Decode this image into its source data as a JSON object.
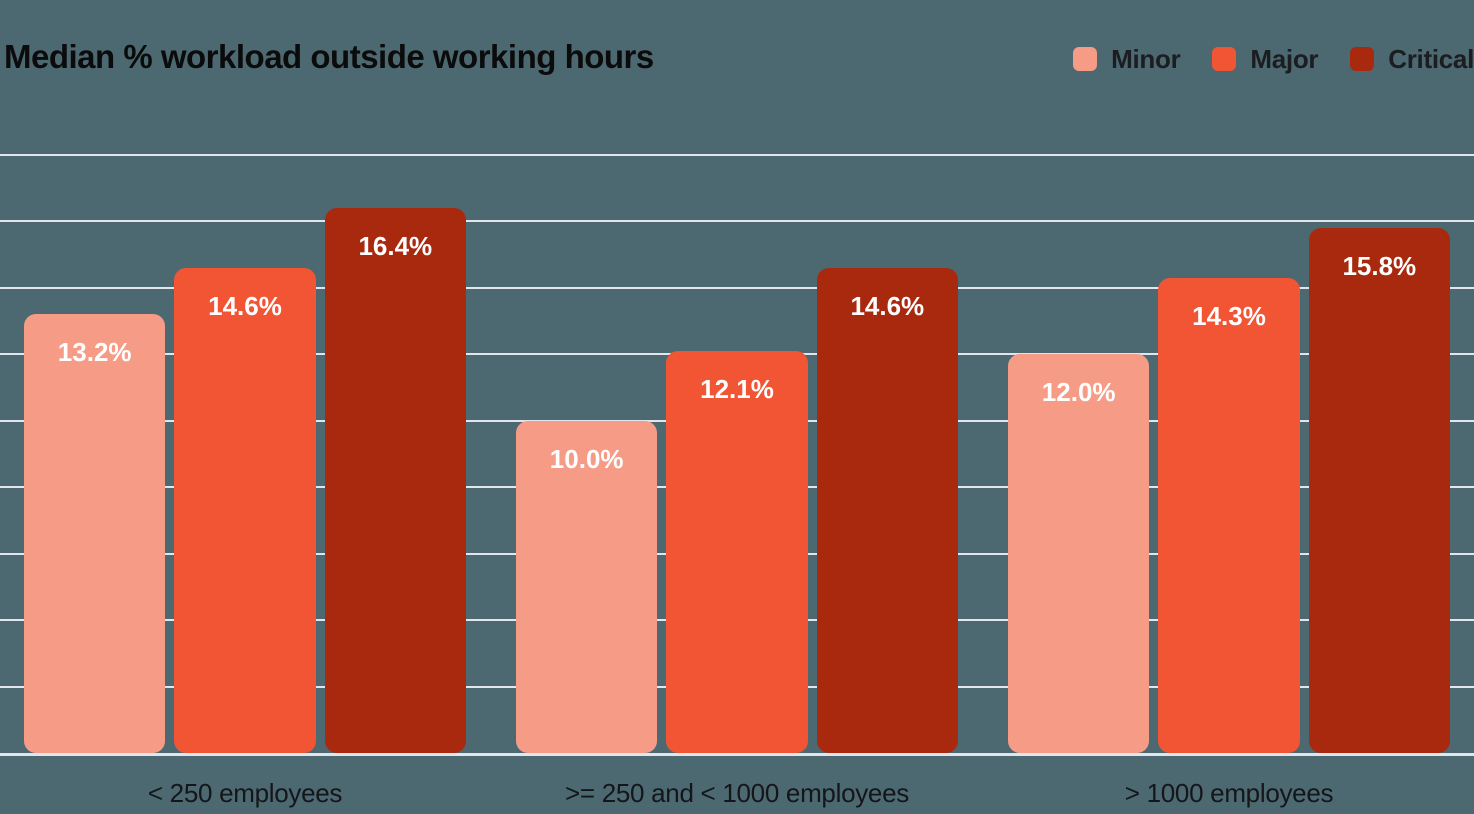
{
  "chart_data": {
    "type": "bar",
    "title": "Median % workload outside working hours",
    "categories": [
      "< 250 employees",
      ">= 250 and < 1000 employees",
      "> 1000 employees"
    ],
    "series": [
      {
        "name": "Minor",
        "color": "#F69C86",
        "values": [
          13.2,
          10.0,
          12.0
        ],
        "labels": [
          "13.2%",
          "10.0%",
          "12.0%"
        ]
      },
      {
        "name": "Major",
        "color": "#F15533",
        "values": [
          14.6,
          12.1,
          14.3
        ],
        "labels": [
          "14.6%",
          "12.1%",
          "14.3%"
        ]
      },
      {
        "name": "Critical",
        "color": "#A9290F",
        "values": [
          16.4,
          14.6,
          15.8
        ],
        "labels": [
          "16.4%",
          "14.6%",
          "15.8%"
        ]
      }
    ],
    "value_suffix": "%",
    "ylim": [
      0,
      18
    ],
    "gridline_step": 2,
    "grid": "horizontal",
    "legend_position": "top-right",
    "xlabel": "",
    "ylabel": ""
  },
  "colors": {
    "background": "#4C6870",
    "gridline": "#E3E5EC",
    "title_text": "#0B0B0C",
    "legend_text": "#1B1D21",
    "axis_label_text": "#14161A",
    "bar_label_text": "#FFFFFF"
  }
}
